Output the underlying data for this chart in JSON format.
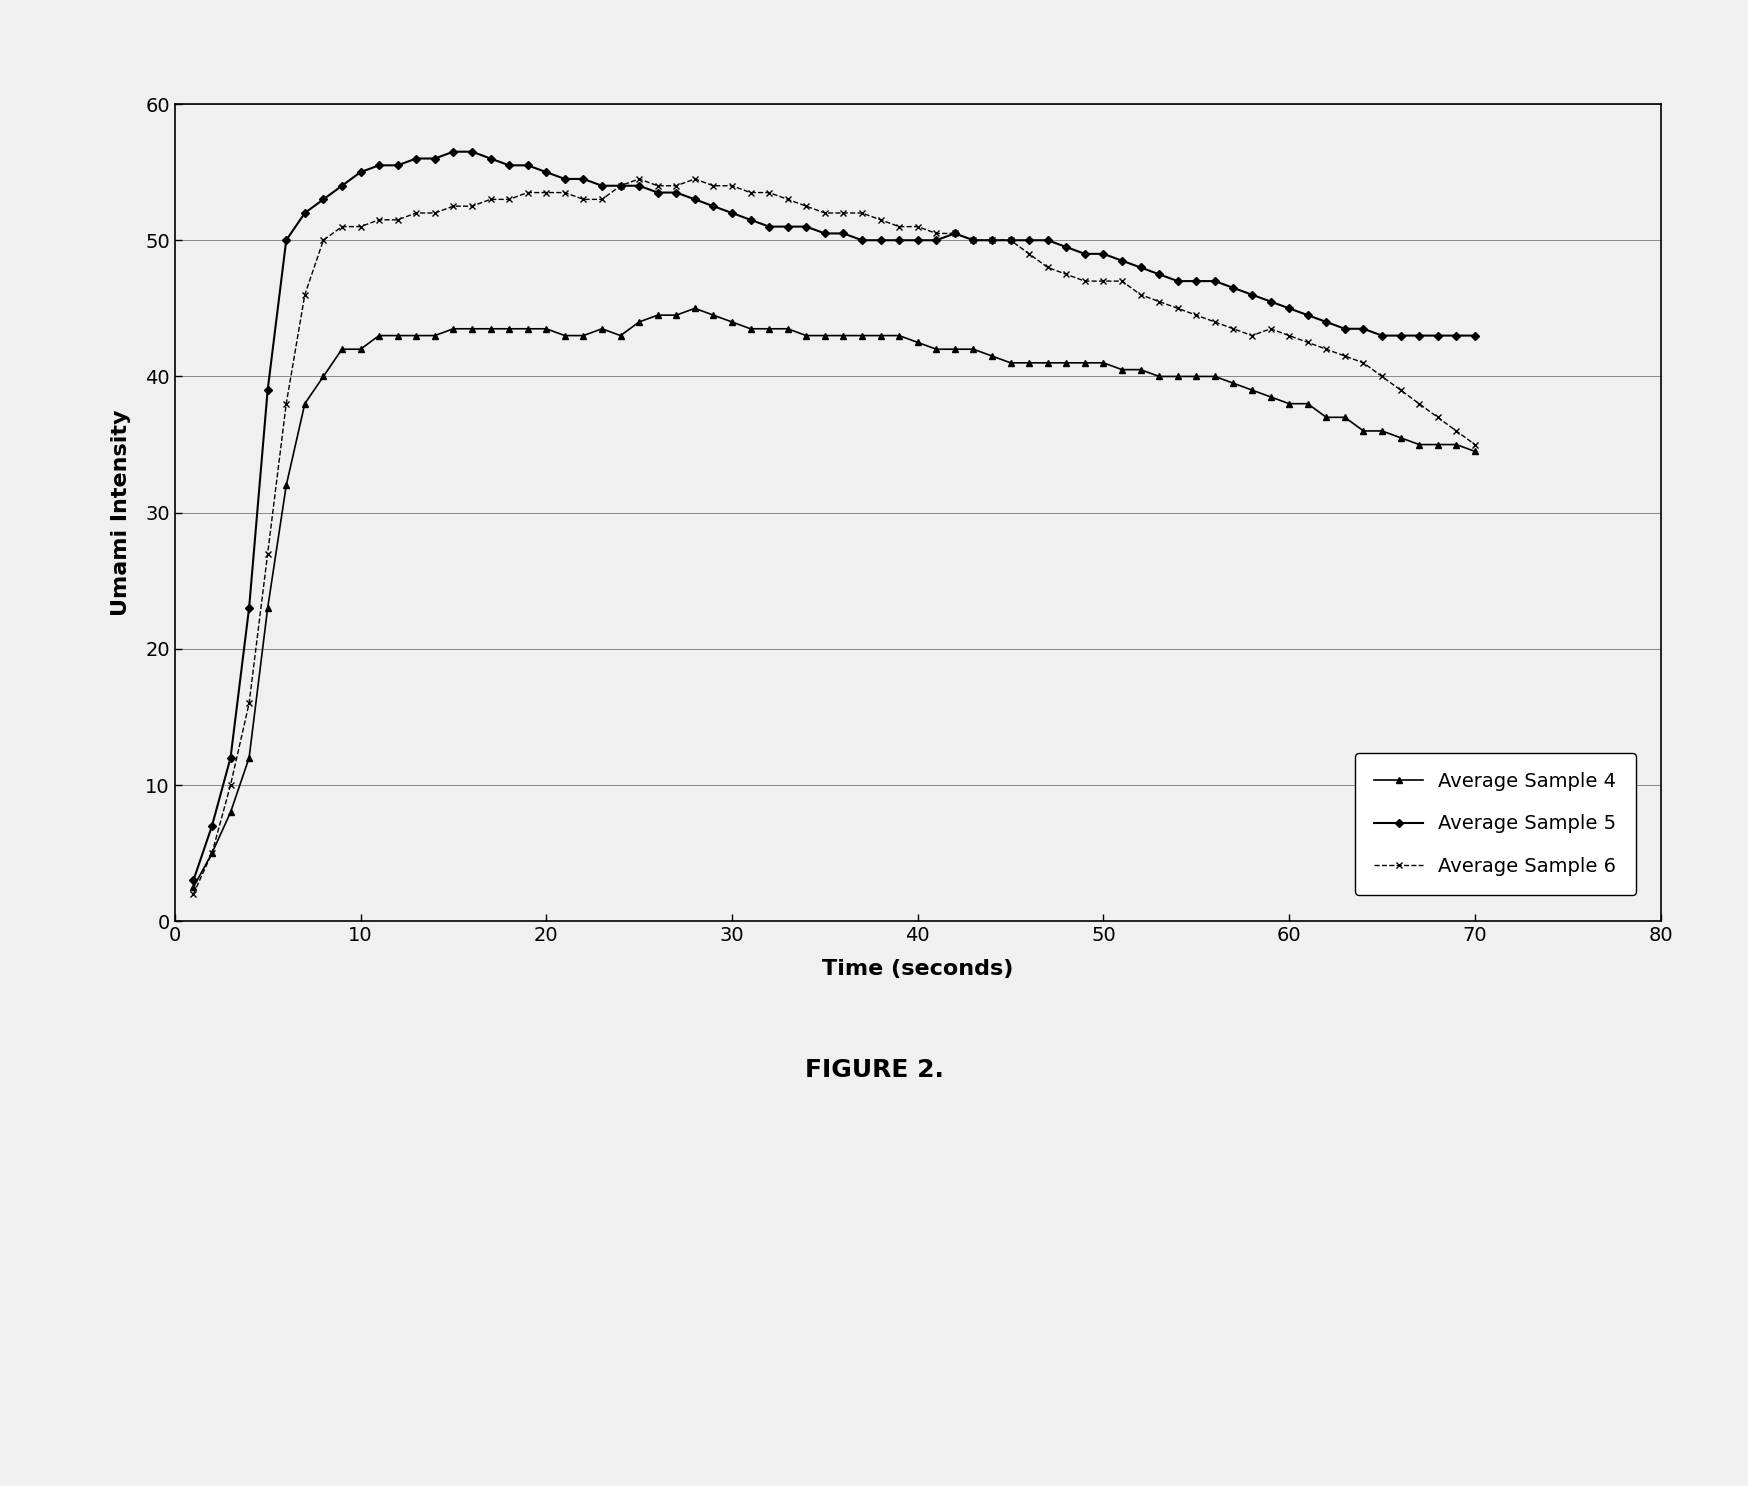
{
  "title": "FIGURE 2.",
  "xlabel": "Time (seconds)",
  "ylabel": "Umami Intensity",
  "xlim": [
    0,
    80
  ],
  "ylim": [
    0,
    60
  ],
  "xticks": [
    0,
    10,
    20,
    30,
    40,
    50,
    60,
    70,
    80
  ],
  "yticks": [
    0,
    10,
    20,
    30,
    40,
    50,
    60
  ],
  "sample4": {
    "label": "Average Sample 4",
    "color": "#000000",
    "marker": "^",
    "linestyle": "-",
    "x": [
      1,
      2,
      3,
      4,
      5,
      6,
      7,
      8,
      9,
      10,
      11,
      12,
      13,
      14,
      15,
      16,
      17,
      18,
      19,
      20,
      21,
      22,
      23,
      24,
      25,
      26,
      27,
      28,
      29,
      30,
      31,
      32,
      33,
      34,
      35,
      36,
      37,
      38,
      39,
      40,
      41,
      42,
      43,
      44,
      45,
      46,
      47,
      48,
      49,
      50,
      51,
      52,
      53,
      54,
      55,
      56,
      57,
      58,
      59,
      60,
      61,
      62,
      63,
      64,
      65,
      66,
      67,
      68,
      69,
      70
    ],
    "y": [
      2.5,
      5,
      8,
      12,
      23,
      32,
      38,
      40,
      42,
      42,
      43,
      43,
      43,
      43,
      43.5,
      43.5,
      43.5,
      43.5,
      43.5,
      43.5,
      43,
      43,
      43.5,
      43,
      44,
      44.5,
      44.5,
      45,
      44.5,
      44,
      43.5,
      43.5,
      43.5,
      43,
      43,
      43,
      43,
      43,
      43,
      42.5,
      42,
      42,
      42,
      41.5,
      41,
      41,
      41,
      41,
      41,
      41,
      40.5,
      40.5,
      40,
      40,
      40,
      40,
      39.5,
      39,
      38.5,
      38,
      38,
      37,
      37,
      36,
      36,
      35.5,
      35,
      35,
      35,
      34.5
    ]
  },
  "sample5": {
    "label": "Average Sample 5",
    "color": "#000000",
    "marker": "D",
    "linestyle": "-",
    "x": [
      1,
      2,
      3,
      4,
      5,
      6,
      7,
      8,
      9,
      10,
      11,
      12,
      13,
      14,
      15,
      16,
      17,
      18,
      19,
      20,
      21,
      22,
      23,
      24,
      25,
      26,
      27,
      28,
      29,
      30,
      31,
      32,
      33,
      34,
      35,
      36,
      37,
      38,
      39,
      40,
      41,
      42,
      43,
      44,
      45,
      46,
      47,
      48,
      49,
      50,
      51,
      52,
      53,
      54,
      55,
      56,
      57,
      58,
      59,
      60,
      61,
      62,
      63,
      64,
      65,
      66,
      67,
      68,
      69,
      70
    ],
    "y": [
      3,
      7,
      12,
      23,
      39,
      50,
      52,
      53,
      54,
      55,
      55.5,
      55.5,
      56,
      56,
      56.5,
      56.5,
      56,
      55.5,
      55.5,
      55,
      54.5,
      54.5,
      54,
      54,
      54,
      53.5,
      53.5,
      53,
      52.5,
      52,
      51.5,
      51,
      51,
      51,
      50.5,
      50.5,
      50,
      50,
      50,
      50,
      50,
      50.5,
      50,
      50,
      50,
      50,
      50,
      49.5,
      49,
      49,
      48.5,
      48,
      47.5,
      47,
      47,
      47,
      46.5,
      46,
      45.5,
      45,
      44.5,
      44,
      43.5,
      43.5,
      43,
      43,
      43,
      43,
      43,
      43
    ]
  },
  "sample6": {
    "label": "Average Sample 6",
    "color": "#000000",
    "marker": "x",
    "linestyle": "--",
    "x": [
      1,
      2,
      3,
      4,
      5,
      6,
      7,
      8,
      9,
      10,
      11,
      12,
      13,
      14,
      15,
      16,
      17,
      18,
      19,
      20,
      21,
      22,
      23,
      24,
      25,
      26,
      27,
      28,
      29,
      30,
      31,
      32,
      33,
      34,
      35,
      36,
      37,
      38,
      39,
      40,
      41,
      42,
      43,
      44,
      45,
      46,
      47,
      48,
      49,
      50,
      51,
      52,
      53,
      54,
      55,
      56,
      57,
      58,
      59,
      60,
      61,
      62,
      63,
      64,
      65,
      66,
      67,
      68,
      69,
      70
    ],
    "y": [
      2,
      5,
      10,
      16,
      27,
      38,
      46,
      50,
      51,
      51,
      51.5,
      51.5,
      52,
      52,
      52.5,
      52.5,
      53,
      53,
      53.5,
      53.5,
      53.5,
      53,
      53,
      54,
      54.5,
      54,
      54,
      54.5,
      54,
      54,
      53.5,
      53.5,
      53,
      52.5,
      52,
      52,
      52,
      51.5,
      51,
      51,
      50.5,
      50.5,
      50,
      50,
      50,
      49,
      48,
      47.5,
      47,
      47,
      47,
      46,
      45.5,
      45,
      44.5,
      44,
      43.5,
      43,
      43.5,
      43,
      42.5,
      42,
      41.5,
      41,
      40,
      39,
      38,
      37,
      36,
      35
    ]
  },
  "background_color": "#f0f0f0",
  "plot_bg_color": "#f0f0f0",
  "grid_color": "#888888",
  "fig_width": 17.48,
  "fig_height": 14.86,
  "dpi": 100
}
